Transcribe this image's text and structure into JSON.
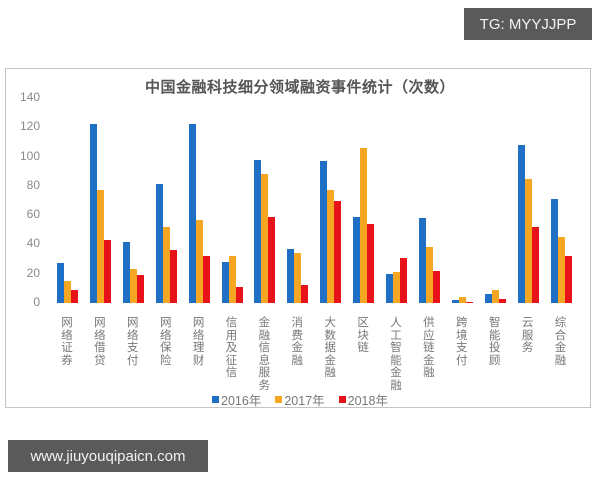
{
  "watermarks": {
    "top_right": "TG: MYYJJPP",
    "bottom_left": "www.jiuyouqipaicn.com"
  },
  "colors": {
    "2016": "#1f6fc5",
    "2017": "#f5a623",
    "2018": "#e8121a",
    "badge_bg": "#5a5a5a",
    "frame_border": "#c4c4c4"
  },
  "chart_data": {
    "type": "bar",
    "title": "中国金融科技细分领域融资事件统计（次数）",
    "xlabel": "",
    "ylabel": "",
    "ylim": [
      0,
      140
    ],
    "yticks": [
      0,
      20,
      40,
      60,
      80,
      100,
      120,
      140
    ],
    "grid": false,
    "legend_position": "bottom",
    "categories": [
      "网络证券",
      "网络借贷",
      "网络支付",
      "网络保险",
      "网络理财",
      "信用及征信",
      "金融信息服务",
      "消费金融",
      "大数据金融",
      "区块链",
      "人工智能金融",
      "供应链金融",
      "跨境支付",
      "智能投顾",
      "云服务",
      "综合金融"
    ],
    "series": [
      {
        "name": "2016年",
        "color": "#1f6fc5",
        "values": [
          27,
          122,
          42,
          81,
          122,
          28,
          98,
          37,
          97,
          59,
          20,
          58,
          2,
          6,
          108,
          71
        ]
      },
      {
        "name": "2017年",
        "color": "#f5a623",
        "values": [
          15,
          77,
          23,
          52,
          57,
          32,
          88,
          34,
          77,
          106,
          21,
          38,
          4,
          9,
          85,
          45
        ]
      },
      {
        "name": "2018年",
        "color": "#e8121a",
        "values": [
          9,
          43,
          19,
          36,
          32,
          11,
          59,
          12,
          70,
          54,
          31,
          22,
          1,
          3,
          52,
          32
        ]
      }
    ]
  }
}
